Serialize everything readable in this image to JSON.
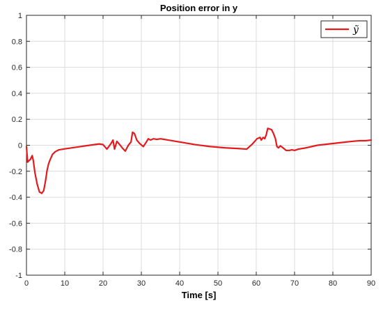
{
  "chart_data": {
    "type": "line",
    "title": "Position error in y",
    "xlabel": "Time [s]",
    "ylabel": "",
    "xlim": [
      0,
      90
    ],
    "ylim": [
      -1,
      1
    ],
    "xticks": [
      0,
      10,
      20,
      30,
      40,
      50,
      60,
      70,
      80,
      90
    ],
    "yticks": [
      -1,
      -0.8,
      -0.6,
      -0.4,
      -0.2,
      0,
      0.2,
      0.4,
      0.6,
      0.8,
      1
    ],
    "ytick_labels": [
      "-1",
      "-0.8",
      "-0.6",
      "-0.4",
      "-0.2",
      "0",
      "0.2",
      "0.4",
      "0.6",
      "0.8",
      "1"
    ],
    "grid": true,
    "legend_position": "top-right",
    "series": [
      {
        "name": "ỹ",
        "color": "#e41a1c",
        "x": [
          0,
          0.3,
          0.6,
          1.0,
          1.5,
          1.8,
          2.2,
          2.8,
          3.4,
          4.0,
          4.5,
          5.0,
          5.4,
          5.8,
          6.2,
          6.8,
          7.5,
          8.5,
          10,
          13,
          16,
          19,
          20,
          21,
          22,
          22.6,
          23,
          23.6,
          24.2,
          25,
          25.8,
          26.6,
          27.3,
          27.7,
          28.2,
          28.8,
          29.5,
          30.5,
          31.2,
          31.8,
          32.4,
          33.2,
          34,
          35,
          36,
          37,
          38,
          40,
          44,
          48,
          52,
          55,
          57.5,
          59,
          60.2,
          61,
          61.3,
          61.8,
          62.2,
          62.6,
          63,
          63.5,
          64,
          64.5,
          65,
          65.4,
          65.8,
          66.3,
          67,
          67.8,
          68.6,
          69.3,
          70,
          71,
          73,
          76,
          79,
          82,
          85,
          87,
          88.5,
          90
        ],
        "y": [
          -0.01,
          -0.13,
          -0.12,
          -0.11,
          -0.08,
          -0.12,
          -0.21,
          -0.3,
          -0.36,
          -0.37,
          -0.35,
          -0.27,
          -0.19,
          -0.14,
          -0.11,
          -0.07,
          -0.05,
          -0.035,
          -0.028,
          -0.015,
          -0.002,
          0.01,
          0.005,
          -0.03,
          0.01,
          0.04,
          -0.03,
          0.03,
          0.01,
          -0.02,
          -0.045,
          0.0,
          0.025,
          0.1,
          0.09,
          0.04,
          0.015,
          -0.01,
          0.02,
          0.05,
          0.04,
          0.05,
          0.045,
          0.05,
          0.045,
          0.04,
          0.035,
          0.025,
          0.005,
          -0.01,
          -0.02,
          -0.025,
          -0.03,
          0.01,
          0.05,
          0.06,
          0.04,
          0.06,
          0.05,
          0.08,
          0.13,
          0.125,
          0.12,
          0.09,
          0.05,
          -0.01,
          -0.02,
          -0.005,
          -0.02,
          -0.04,
          -0.04,
          -0.035,
          -0.04,
          -0.03,
          -0.02,
          0.0,
          0.01,
          0.02,
          0.03,
          0.035,
          0.035,
          0.04
        ]
      }
    ]
  }
}
